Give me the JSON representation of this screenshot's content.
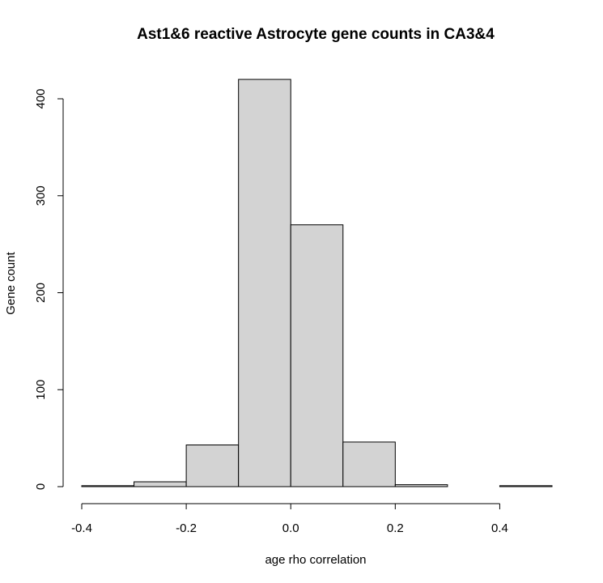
{
  "chart_data": {
    "type": "bar",
    "title": "Ast1&6 reactive Astrocyte gene counts in CA3&4",
    "xlabel": "age rho correlation",
    "ylabel": "Gene count",
    "bins": [
      {
        "start": -0.4,
        "end": -0.3,
        "count": 1
      },
      {
        "start": -0.3,
        "end": -0.2,
        "count": 5
      },
      {
        "start": -0.2,
        "end": -0.1,
        "count": 43
      },
      {
        "start": -0.1,
        "end": 0.0,
        "count": 420
      },
      {
        "start": 0.0,
        "end": 0.1,
        "count": 270
      },
      {
        "start": 0.1,
        "end": 0.2,
        "count": 46
      },
      {
        "start": 0.2,
        "end": 0.3,
        "count": 2
      },
      {
        "start": 0.3,
        "end": 0.4,
        "count": 0
      },
      {
        "start": 0.4,
        "end": 0.5,
        "count": 1
      }
    ],
    "xlim": [
      -0.4,
      0.5
    ],
    "ylim": [
      0,
      420
    ],
    "x_ticks": [
      -0.4,
      -0.2,
      0.0,
      0.2,
      0.4
    ],
    "x_tick_labels": [
      "-0.4",
      "-0.2",
      "0.0",
      "0.2",
      "0.4"
    ],
    "y_ticks": [
      0,
      100,
      200,
      300,
      400
    ],
    "y_tick_labels": [
      "0",
      "100",
      "200",
      "300",
      "400"
    ],
    "grid": false,
    "colors": {
      "bar_fill": "#d3d3d3",
      "bar_stroke": "#000000"
    }
  }
}
